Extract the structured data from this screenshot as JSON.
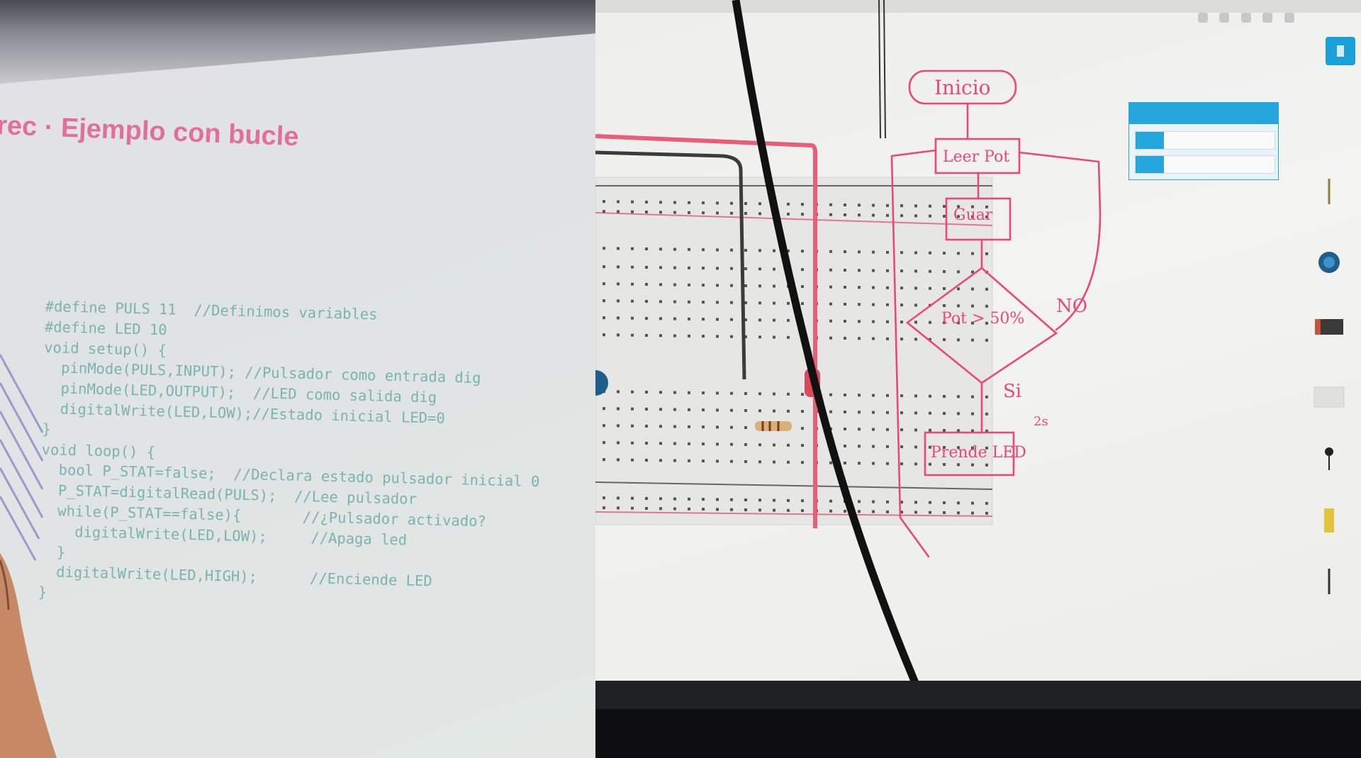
{
  "left_slide": {
    "title": "rec · Ejemplo con bucle",
    "code_lines": [
      "#define PULS 11  //Definimos variables",
      "#define LED 10",
      "void setup() {",
      "  pinMode(PULS,INPUT); //Pulsador como entrada dig",
      "  pinMode(LED,OUTPUT);  //LED como salida dig",
      "  digitalWrite(LED,LOW);//Estado inicial LED=0",
      "}",
      "void loop() {",
      "  bool P_STAT=false;  //Declara estado pulsador inicial 0",
      "  P_STAT=digitalRead(PULS);  //Lee pulsador",
      "  while(P_STAT==false){       //¿Pulsador activado?",
      "    digitalWrite(LED,LOW);     //Apaga led",
      "  }",
      "  digitalWrite(LED,HIGH);      //Enciende LED",
      "}"
    ]
  },
  "whiteboard": {
    "start": "Inicio",
    "read": "Leer Pot",
    "store": "Guar",
    "decision": "Pot > 50%",
    "no": "NO",
    "yes": "Si",
    "action": "Prende LED",
    "note": "2s"
  },
  "colors": {
    "marker": "#e8487a",
    "accent": "#25a7dd",
    "code": "#7ab3b0",
    "slide_title": "#e0709a"
  }
}
